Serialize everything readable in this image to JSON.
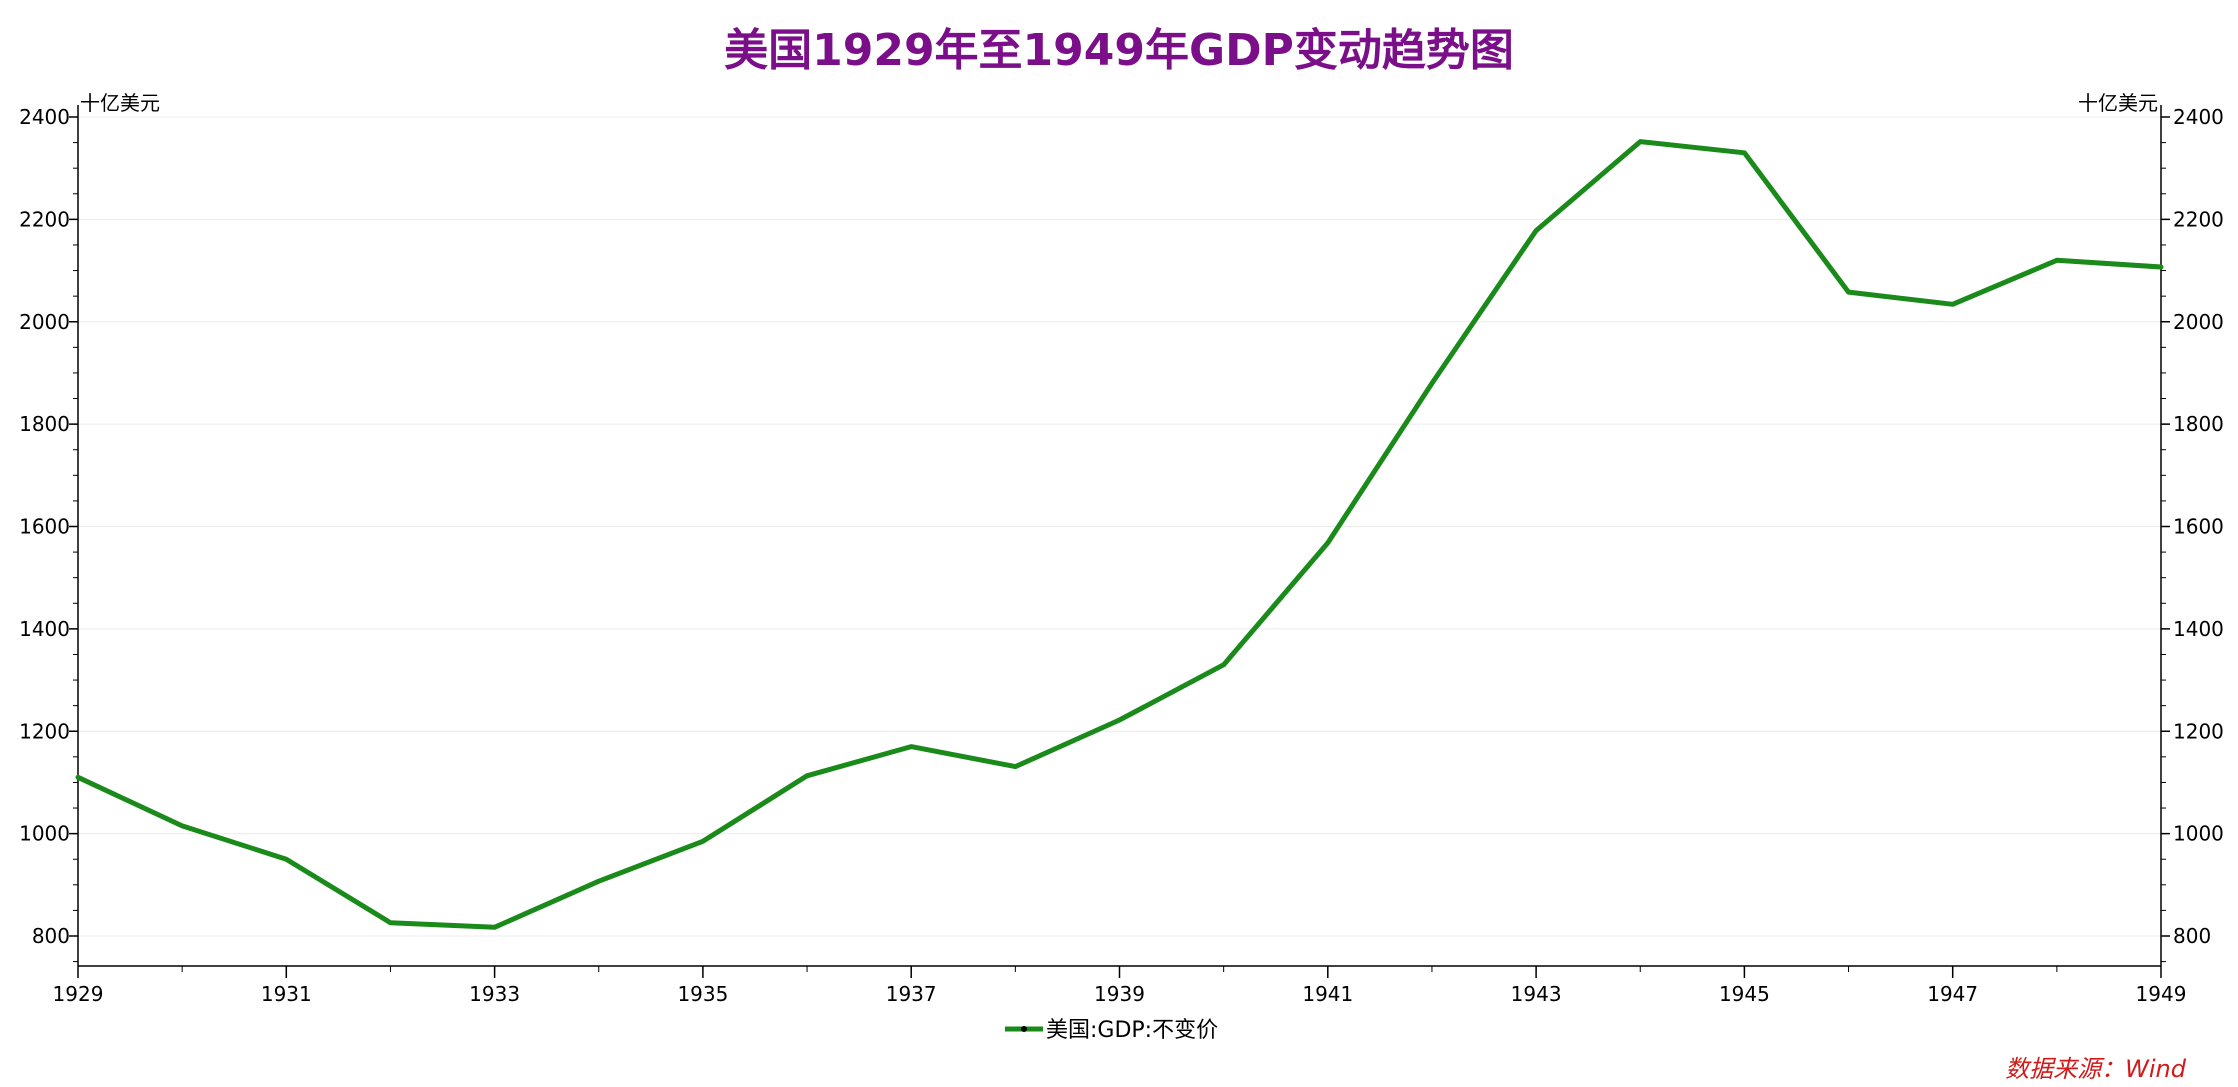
{
  "chart_data": {
    "type": "line",
    "title": "美国1929年至1949年GDP变动趋势图",
    "unit_left": "十亿美元",
    "unit_right": "十亿美元",
    "x": [
      1929,
      1930,
      1931,
      1932,
      1933,
      1934,
      1935,
      1936,
      1937,
      1938,
      1939,
      1940,
      1941,
      1942,
      1943,
      1944,
      1945,
      1946,
      1947,
      1948,
      1949
    ],
    "x_ticks": [
      "1929",
      "1931",
      "1933",
      "1935",
      "1937",
      "1939",
      "1941",
      "1943",
      "1945",
      "1947",
      "1949"
    ],
    "y_ticks": [
      "800",
      "1000",
      "1200",
      "1400",
      "1600",
      "1800",
      "2000",
      "2200",
      "2400"
    ],
    "ylim": [
      740,
      2400
    ],
    "grid": "horizontal",
    "legend_position": "bottom",
    "series": [
      {
        "name": "美国:GDP:不变价",
        "color": "#1a8a1a",
        "values": [
          1110,
          1015,
          950,
          826,
          817,
          907,
          985,
          1113,
          1170,
          1131,
          1222,
          1330,
          1568,
          1880,
          2178,
          2352,
          2330,
          2058,
          2034,
          2120,
          2107
        ]
      }
    ],
    "source_note": "数据来源：Wind"
  }
}
